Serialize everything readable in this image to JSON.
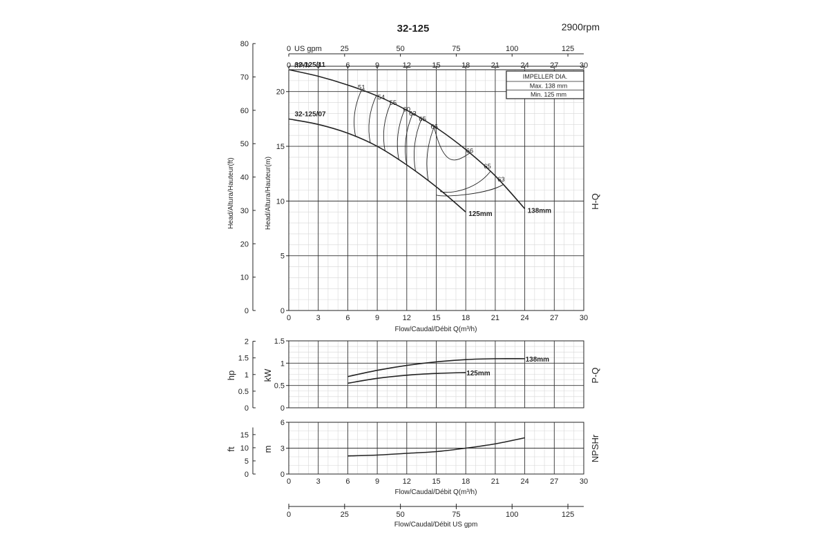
{
  "page": {
    "title": "32-125",
    "speed": "2900rpm"
  },
  "labels": {
    "us_gpm": "US gpm",
    "m3h": "m³/h",
    "flow_x": "Flow/Caudal/Débit Q(m³/h)",
    "flow_us": "Flow/Caudal/Débit  US gpm",
    "head_ft": "Head/Altura/Hauteur(ft)",
    "head_m": "Head/Altura/Hauteur(m)",
    "hp": "hp",
    "kw": "kW",
    "ft": "ft",
    "m": "m",
    "hq": "H-Q",
    "pq": "P-Q",
    "npshr": "NPSHr"
  },
  "impeller": {
    "title": "IMPELLER DIA.",
    "max": "Max.  138 mm",
    "min": "Min.  125 mm"
  },
  "chart_data": [
    {
      "type": "line",
      "name": "H-Q",
      "x_ticks": [
        0,
        3,
        6,
        9,
        12,
        15,
        18,
        21,
        24,
        27,
        30
      ],
      "xlim": [
        0,
        30
      ],
      "ylim": [
        0,
        22
      ],
      "y_ticks": [
        0,
        5,
        10,
        15,
        20
      ],
      "ft_ticks": [
        0,
        10,
        20,
        30,
        40,
        50,
        60,
        70,
        80
      ],
      "gpm_ticks": [
        0,
        25,
        50,
        75,
        100,
        125
      ],
      "grid": true,
      "series": [
        {
          "name": "32-125/11",
          "end_label": "138mm",
          "x": [
            0,
            3,
            6,
            9,
            12,
            15,
            18,
            21,
            24
          ],
          "y": [
            22,
            21.4,
            20.6,
            19.6,
            18.3,
            16.7,
            14.7,
            12.3,
            9.3
          ]
        },
        {
          "name": "32-125/07",
          "end_label": "125mm",
          "x": [
            0,
            3,
            6,
            9,
            12,
            15,
            18
          ],
          "y": [
            17.5,
            17.0,
            16.2,
            15.0,
            13.3,
            11.3,
            9.0
          ]
        }
      ],
      "efficiency_labels": [
        {
          "text": "51",
          "x": 7.4,
          "y": 20.2
        },
        {
          "text": "54",
          "x": 9.4,
          "y": 19.3
        },
        {
          "text": "55",
          "x": 10.6,
          "y": 18.8
        },
        {
          "text": "60",
          "x": 12.0,
          "y": 18.2
        },
        {
          "text": "63",
          "x": 12.6,
          "y": 17.8
        },
        {
          "text": "65",
          "x": 13.6,
          "y": 17.3
        },
        {
          "text": "66",
          "x": 14.8,
          "y": 16.6
        },
        {
          "text": "66",
          "x": 18.4,
          "y": 14.4
        },
        {
          "text": "65",
          "x": 20.2,
          "y": 13.0
        },
        {
          "text": "63",
          "x": 21.6,
          "y": 11.8
        }
      ]
    },
    {
      "type": "line",
      "name": "P-Q",
      "xlim": [
        0,
        30
      ],
      "ylim": [
        0,
        1.5
      ],
      "y_ticks": [
        0,
        0.5,
        1,
        1.5
      ],
      "y_tick_labels": [
        "0",
        "0.5",
        "1",
        "1.5"
      ],
      "hp_ticks": [
        0,
        0.5,
        1,
        1.5,
        2
      ],
      "hp_tick_labels": [
        "0",
        "0.5",
        "1",
        "1.5",
        "2"
      ],
      "grid": true,
      "series": [
        {
          "name": "138mm",
          "x": [
            6,
            9,
            12,
            15,
            18,
            21,
            24
          ],
          "y": [
            0.7,
            0.84,
            0.95,
            1.03,
            1.08,
            1.1,
            1.1
          ]
        },
        {
          "name": "125mm",
          "x": [
            6,
            9,
            12,
            15,
            18
          ],
          "y": [
            0.55,
            0.66,
            0.73,
            0.77,
            0.79
          ]
        }
      ]
    },
    {
      "type": "line",
      "name": "NPSHr",
      "xlim": [
        0,
        30
      ],
      "ylim": [
        0,
        6
      ],
      "y_ticks": [
        0,
        3,
        6
      ],
      "ft_ticks": [
        0,
        5,
        10,
        15
      ],
      "grid": true,
      "series": [
        {
          "x": [
            6,
            9,
            12,
            15,
            18,
            21,
            24
          ],
          "y": [
            2.1,
            2.2,
            2.4,
            2.6,
            3.0,
            3.5,
            4.2
          ]
        }
      ]
    }
  ]
}
